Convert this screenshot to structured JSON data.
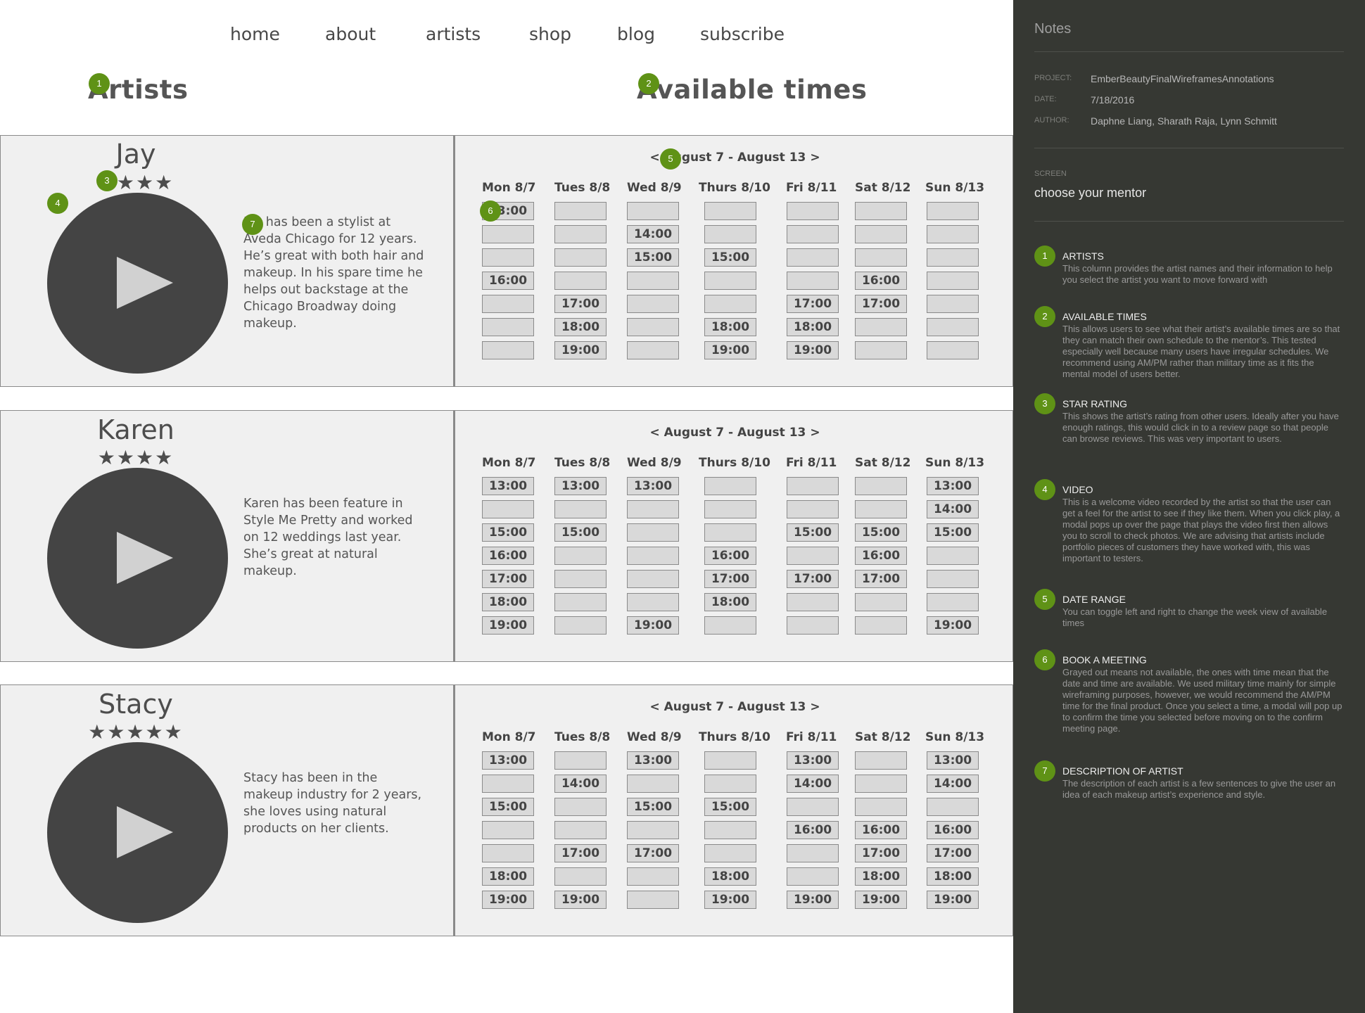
{
  "nav": [
    "home",
    "about",
    "artists",
    "shop",
    "blog",
    "subscribe"
  ],
  "sections": {
    "artists_title": "Artists",
    "times_title": "Available times"
  },
  "week_prev": "<",
  "week_next": ">",
  "days": [
    "Mon 8/7",
    "Tues 8/8",
    "Wed 8/9",
    "Thurs 8/10",
    "Fri 8/11",
    "Sat 8/12",
    "Sun 8/13"
  ],
  "artists": [
    {
      "name": "Jay",
      "rating": 4,
      "stars": "★★★★",
      "description": "Jay has been a stylist at Aveda Chicago for 12 years. He’s great with both hair and makeup. In his spare time he helps out backstage at the Chicago Broadway doing makeup.",
      "week_range": "August 7 - August 13",
      "schedule": [
        [
          "13:00",
          "",
          "",
          "16:00",
          "",
          "",
          ""
        ],
        [
          "",
          "",
          "",
          "",
          "17:00",
          "18:00",
          "19:00"
        ],
        [
          "",
          "14:00",
          "15:00",
          "",
          "",
          "",
          ""
        ],
        [
          "",
          "",
          "15:00",
          "",
          "",
          "18:00",
          "19:00"
        ],
        [
          "",
          "",
          "",
          "",
          "17:00",
          "18:00",
          "19:00"
        ],
        [
          "",
          "",
          "",
          "16:00",
          "17:00",
          "",
          ""
        ],
        [
          "",
          "",
          "",
          "",
          "",
          "",
          ""
        ]
      ]
    },
    {
      "name": "Karen",
      "rating": 4,
      "stars": "★★★★",
      "description": "Karen has been feature in Style Me Pretty and worked on 12 weddings last year. She’s great at natural makeup.",
      "week_range": "August 7 - August 13",
      "schedule": [
        [
          "13:00",
          "",
          "15:00",
          "16:00",
          "17:00",
          "18:00",
          "19:00"
        ],
        [
          "13:00",
          "",
          "15:00",
          "",
          "",
          "",
          ""
        ],
        [
          "13:00",
          "",
          "",
          "",
          "",
          "",
          "19:00"
        ],
        [
          "",
          "",
          "",
          "16:00",
          "17:00",
          "18:00",
          ""
        ],
        [
          "",
          "",
          "15:00",
          "",
          "17:00",
          "",
          ""
        ],
        [
          "",
          "",
          "15:00",
          "16:00",
          "17:00",
          "",
          ""
        ],
        [
          "13:00",
          "14:00",
          "15:00",
          "",
          "",
          "",
          "19:00"
        ]
      ]
    },
    {
      "name": "Stacy",
      "rating": 5,
      "stars": "★★★★★",
      "description": "Stacy has been in the makeup industry for 2 years, she loves using natural products on her clients.",
      "week_range": "August 7 - August 13",
      "schedule": [
        [
          "13:00",
          "",
          "15:00",
          "",
          "",
          "18:00",
          "19:00"
        ],
        [
          "",
          "14:00",
          "",
          "",
          "17:00",
          "",
          "19:00"
        ],
        [
          "13:00",
          "",
          "15:00",
          "",
          "17:00",
          "",
          ""
        ],
        [
          "",
          "",
          "15:00",
          "",
          "",
          "18:00",
          "19:00"
        ],
        [
          "13:00",
          "14:00",
          "",
          "16:00",
          "",
          "",
          "19:00"
        ],
        [
          "",
          "",
          "",
          "16:00",
          "17:00",
          "18:00",
          "19:00"
        ],
        [
          "13:00",
          "14:00",
          "",
          "16:00",
          "17:00",
          "18:00",
          "19:00"
        ]
      ]
    }
  ],
  "notes": {
    "title": "Notes",
    "project_label": "PROJECT:",
    "project": "EmberBeautyFinalWireframesAnnotations",
    "date_label": "DATE:",
    "date": "7/18/2016",
    "author_label": "AUTHOR:",
    "author": "Daphne Liang, Sharath Raja, Lynn Schmitt",
    "screen_label": "SCREEN",
    "screen": "choose your mentor",
    "items": [
      {
        "number": "1",
        "title": "ARTISTS",
        "text": "This column provides the artist names and their information to help you select the artist you want to move forward with"
      },
      {
        "number": "2",
        "title": "AVAILABLE TIMES",
        "text": "This allows users to see what their artist’s available times are so that they can match their own schedule to the mentor’s. This tested especially well because many users have irregular schedules. We recommend using AM/PM rather than military time as it fits the mental model of users better."
      },
      {
        "number": "3",
        "title": "STAR RATING",
        "text": "This shows the artist’s rating from other users. Ideally after you have enough ratings, this would click in to a review page so that people can browse reviews. This was very important to users."
      },
      {
        "number": "4",
        "title": "VIDEO",
        "text": "This is a welcome video recorded by the artist so that the user can get a feel for the artist to see if they like them. When you click play, a modal pops up over the page that plays the video first then allows you to scroll to check photos. We are advising that artists include portfolio pieces of customers they have worked with, this was important to testers."
      },
      {
        "number": "5",
        "title": "DATE RANGE",
        "text": "You can toggle left and right to change the week view of available times"
      },
      {
        "number": "6",
        "title": "BOOK A MEETING",
        "text": "Grayed out means not available, the ones with time mean that the date and time are available. We used military time mainly for simple wireframing purposes, however, we would recommend the AM/PM time for the final product. Once you select a time, a modal will pop up to confirm the time you selected before moving on to the confirm meeting page."
      },
      {
        "number": "7",
        "title": "DESCRIPTION OF ARTIST",
        "text": "The description of each artist is a few sentences to give the user an idea of each makeup artist’s experience and style."
      }
    ]
  }
}
